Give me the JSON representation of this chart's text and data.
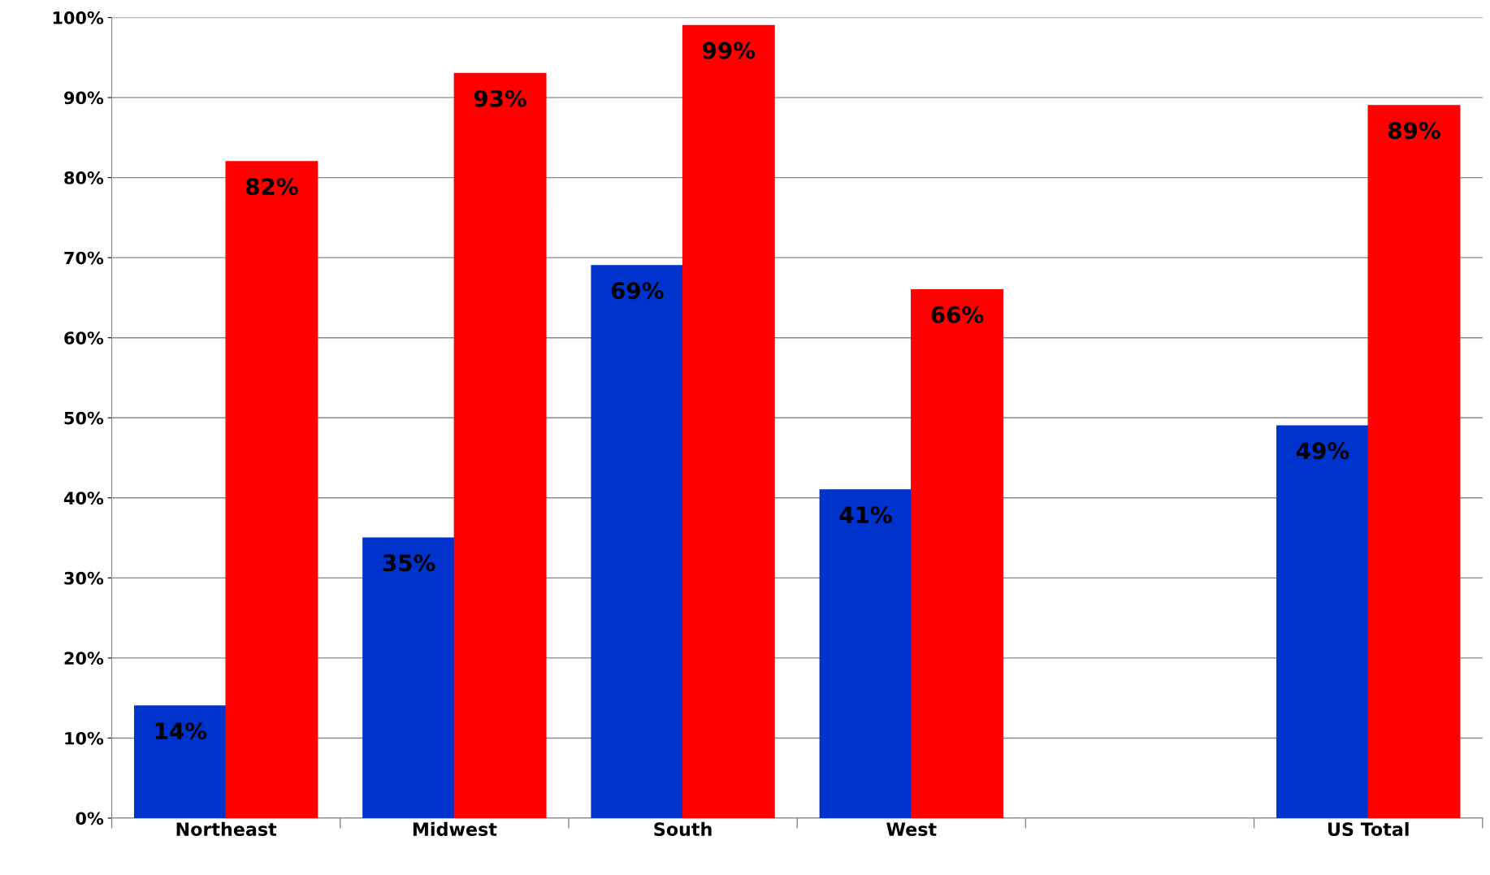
{
  "chart_data": {
    "type": "bar",
    "categories": [
      "Northeast",
      "Midwest",
      "South",
      "West",
      null,
      "US Total"
    ],
    "series": [
      {
        "color": "#0033cc",
        "values": [
          14,
          35,
          69,
          41,
          null,
          49
        ],
        "value_labels": [
          "14%",
          "35%",
          "69%",
          "41%",
          null,
          "49%"
        ]
      },
      {
        "color": "#ff0000",
        "values": [
          82,
          93,
          99,
          66,
          null,
          89
        ],
        "value_labels": [
          "82%",
          "93%",
          "99%",
          "66%",
          null,
          "89%"
        ]
      }
    ],
    "ylim": [
      0,
      100
    ],
    "yticks": [
      {
        "value": 0,
        "label": "0%"
      },
      {
        "value": 10,
        "label": "10%"
      },
      {
        "value": 20,
        "label": "20%"
      },
      {
        "value": 30,
        "label": "30%"
      },
      {
        "value": 40,
        "label": "40%"
      },
      {
        "value": 50,
        "label": "50%"
      },
      {
        "value": 60,
        "label": "60%"
      },
      {
        "value": 70,
        "label": "70%"
      },
      {
        "value": 80,
        "label": "80%"
      },
      {
        "value": 90,
        "label": "90%"
      },
      {
        "value": 100,
        "label": "100%"
      }
    ],
    "grid": "y",
    "legend": false
  }
}
